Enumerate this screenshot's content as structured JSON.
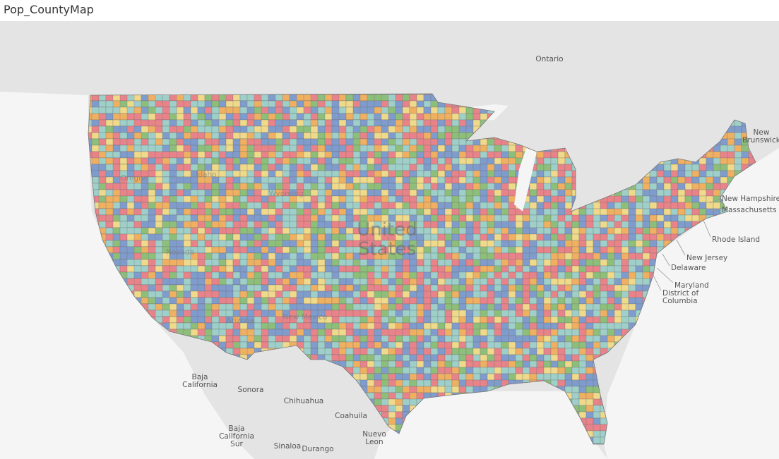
{
  "title": "Pop_CountyMap",
  "country_label": [
    "United",
    "States"
  ],
  "labels": [
    {
      "lines": [
        "Ontario"
      ]
    },
    {
      "lines": [
        "New",
        "Brunswick"
      ]
    },
    {
      "lines": [
        "New Hampshire"
      ]
    },
    {
      "lines": [
        "Massachusetts"
      ]
    },
    {
      "lines": [
        "Rhode Island"
      ]
    },
    {
      "lines": [
        "New Jersey"
      ]
    },
    {
      "lines": [
        "Delaware"
      ]
    },
    {
      "lines": [
        "Maryland"
      ]
    },
    {
      "lines": [
        "District of",
        "Columbia"
      ]
    },
    {
      "lines": [
        "Baja",
        "California"
      ]
    },
    {
      "lines": [
        "Sonora"
      ]
    },
    {
      "lines": [
        "Chihuahua"
      ]
    },
    {
      "lines": [
        "Coahuila"
      ]
    },
    {
      "lines": [
        "Nuevo",
        "Leon"
      ]
    },
    {
      "lines": [
        "Baja",
        "California",
        "Sur"
      ]
    },
    {
      "lines": [
        "Sinaloa"
      ]
    },
    {
      "lines": [
        "Durango"
      ]
    }
  ],
  "state_labels": [
    "Oregon",
    "Idaho",
    "Wyoming",
    "Nevada",
    "Arizona",
    "New Mexico"
  ]
}
